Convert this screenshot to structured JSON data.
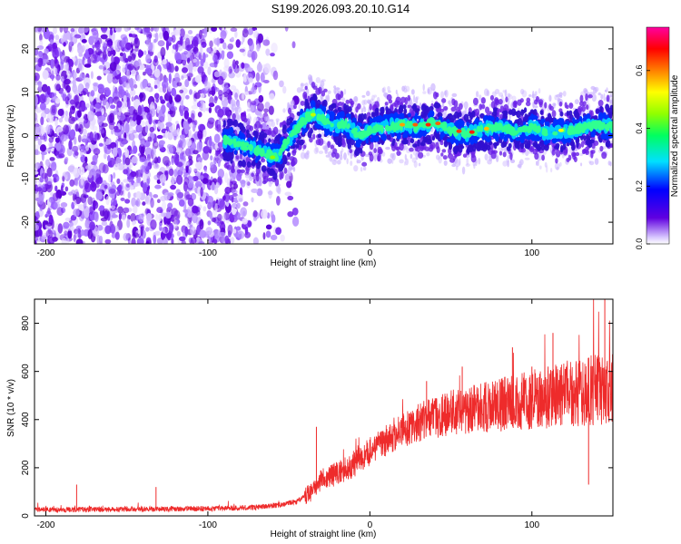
{
  "title": "S199.2026.093.20.10.G14",
  "chart_data": [
    {
      "type": "heatmap",
      "xlabel": "Height of straight line (km)",
      "ylabel": "Frequency (Hz)",
      "xlim": [
        -207,
        150
      ],
      "ylim": [
        -25,
        25
      ],
      "xticks": [
        -200,
        -100,
        0,
        100
      ],
      "yticks": [
        -20,
        -10,
        0,
        10,
        20
      ],
      "ridge_frequency": {
        "x": [
          -88,
          -80,
          -72,
          -65,
          -58,
          -52,
          -46,
          -42,
          -38,
          -34,
          -30,
          -25,
          -20,
          -15,
          -10,
          -5,
          0,
          10,
          20,
          30,
          40,
          50,
          60,
          70,
          80,
          90,
          100,
          110,
          120,
          130,
          140,
          150
        ],
        "y": [
          -1,
          -2,
          -3,
          -4,
          -5,
          -2,
          1,
          3,
          4.5,
          5,
          4,
          3,
          2,
          3,
          1,
          0,
          1,
          2,
          2.5,
          2,
          3,
          1,
          0.5,
          1.5,
          2,
          1,
          2,
          0.5,
          1,
          1.5,
          2.5,
          2
        ]
      },
      "noise_region_x": [
        -207,
        -50
      ],
      "colorbar": {
        "label": "Normalized spectral amplitude",
        "range": [
          0.0,
          0.75
        ],
        "ticks": [
          "0.0",
          "0.2",
          "0.4",
          "0.6"
        ],
        "colors": [
          "#ffffff",
          "#6000e0",
          "#0000ff",
          "#00e0ff",
          "#00ff60",
          "#90ff00",
          "#ffff00",
          "#ff8000",
          "#ff0000",
          "#ff00a0"
        ]
      }
    },
    {
      "type": "line",
      "xlabel": "Height of straight line (km)",
      "ylabel": "SNR (10 * v/v)",
      "xlim": [
        -207,
        150
      ],
      "ylim": [
        0,
        900
      ],
      "xticks": [
        -200,
        -100,
        0,
        100
      ],
      "yticks": [
        0,
        200,
        400,
        600,
        800
      ],
      "series": [
        {
          "name": "SNR",
          "color": "#ee2b2b",
          "x": [
            -207,
            -180,
            -150,
            -120,
            -90,
            -70,
            -55,
            -45,
            -35,
            -30,
            -20,
            -10,
            0,
            10,
            20,
            30,
            40,
            50,
            60,
            70,
            80,
            90,
            100,
            110,
            120,
            130,
            140,
            150
          ],
          "y": [
            25,
            25,
            27,
            28,
            30,
            35,
            45,
            60,
            100,
            150,
            170,
            210,
            260,
            310,
            350,
            380,
            400,
            420,
            430,
            440,
            450,
            460,
            470,
            480,
            490,
            500,
            510,
            520
          ],
          "spikes": [
            {
              "x": -181,
              "y": 130
            },
            {
              "x": -132,
              "y": 120
            },
            {
              "x": -33,
              "y": 370
            },
            {
              "x": 145,
              "y": 900
            },
            {
              "x": 113,
              "y": 760
            },
            {
              "x": 110,
              "y": 620
            },
            {
              "x": 100,
              "y": 620
            },
            {
              "x": 88,
              "y": 700
            },
            {
              "x": 57,
              "y": 620
            },
            {
              "x": 35,
              "y": 560
            },
            {
              "x": 135,
              "y": 130
            }
          ]
        }
      ]
    }
  ]
}
